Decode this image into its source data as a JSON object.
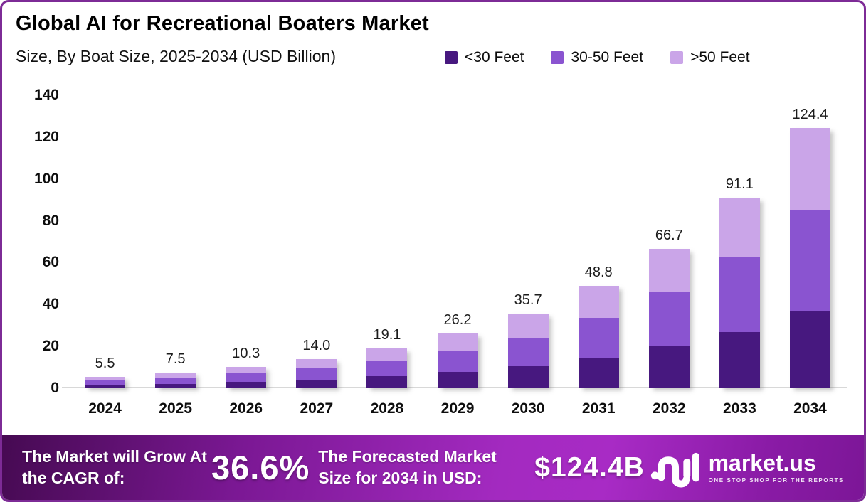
{
  "header": {
    "title": "Global AI for Recreational Boaters Market",
    "subtitle": "Size, By Boat Size, 2025-2034 (USD Billion)"
  },
  "colors": {
    "border": "#7d2b96",
    "axis_line": "#d8d8d8",
    "banner_gradient_start": "#460a52",
    "banner_gradient_mid": "#a82bc5",
    "banner_gradient_end": "#7c1697",
    "series_dark": "#47187f",
    "series_medium": "#8a54d0",
    "series_light": "#caa5e8"
  },
  "chart_data": {
    "type": "bar",
    "stacked": true,
    "title": "Global AI for Recreational Boaters Market",
    "subtitle": "Size, By Boat Size, 2025-2034 (USD Billion)",
    "xlabel": "",
    "ylabel": "",
    "ylim": [
      0,
      140
    ],
    "yticks": [
      0,
      20,
      40,
      60,
      80,
      100,
      120,
      140
    ],
    "grid": false,
    "legend_position": "top-right",
    "categories": [
      "2024",
      "2025",
      "2026",
      "2027",
      "2028",
      "2029",
      "2030",
      "2031",
      "2032",
      "2033",
      "2034"
    ],
    "series": [
      {
        "name": "<30 Feet",
        "color": "#47187f",
        "values": [
          1.6,
          2.2,
          3.0,
          4.1,
          5.7,
          7.7,
          10.4,
          14.5,
          19.9,
          26.8,
          36.8
        ]
      },
      {
        "name": "30-50 Feet",
        "color": "#8a54d0",
        "values": [
          2.2,
          2.9,
          4.0,
          5.5,
          7.4,
          10.2,
          13.9,
          19.0,
          26.1,
          35.7,
          48.6
        ]
      },
      {
        "name": ">50 Feet",
        "color": "#caa5e8",
        "values": [
          1.7,
          2.4,
          3.3,
          4.4,
          6.0,
          8.3,
          11.4,
          15.3,
          20.7,
          28.6,
          39.0
        ]
      }
    ],
    "totals": [
      5.5,
      7.5,
      10.3,
      14.0,
      19.1,
      26.2,
      35.7,
      48.8,
      66.7,
      91.1,
      124.4
    ]
  },
  "banner": {
    "cagr_label": "The Market will Grow At the CAGR of:",
    "cagr_value": "36.6%",
    "forecast_label": "The Forecasted Market Size for 2034 in USD:",
    "forecast_value": "$124.4B"
  },
  "logo": {
    "name": "market.us",
    "tagline": "ONE STOP SHOP FOR THE REPORTS"
  }
}
